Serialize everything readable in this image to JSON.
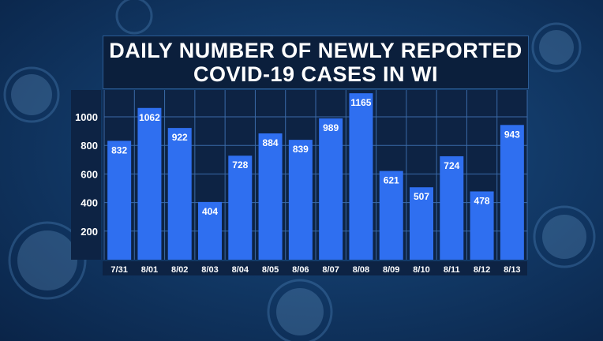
{
  "title": {
    "line1": "DAILY NUMBER OF NEWLY REPORTED",
    "line2": "COVID-19 CASES IN WI"
  },
  "colors": {
    "bar": "#2f6ff0",
    "panel": "#0d2344",
    "grid": "#3a6aa8",
    "text": "#ffffff"
  },
  "chart_data": {
    "type": "bar",
    "title": "DAILY NUMBER OF NEWLY REPORTED COVID-19 CASES IN WI",
    "categories": [
      "7/31",
      "8/01",
      "8/02",
      "8/03",
      "8/04",
      "8/05",
      "8/06",
      "8/07",
      "8/08",
      "8/09",
      "8/10",
      "8/11",
      "8/12",
      "8/13"
    ],
    "values": [
      832,
      1062,
      922,
      404,
      728,
      884,
      839,
      989,
      1165,
      621,
      507,
      724,
      478,
      943
    ],
    "yticks": [
      200,
      400,
      600,
      800,
      1000
    ],
    "ylim": [
      0,
      1200
    ],
    "grid": true,
    "data_labels": true
  }
}
